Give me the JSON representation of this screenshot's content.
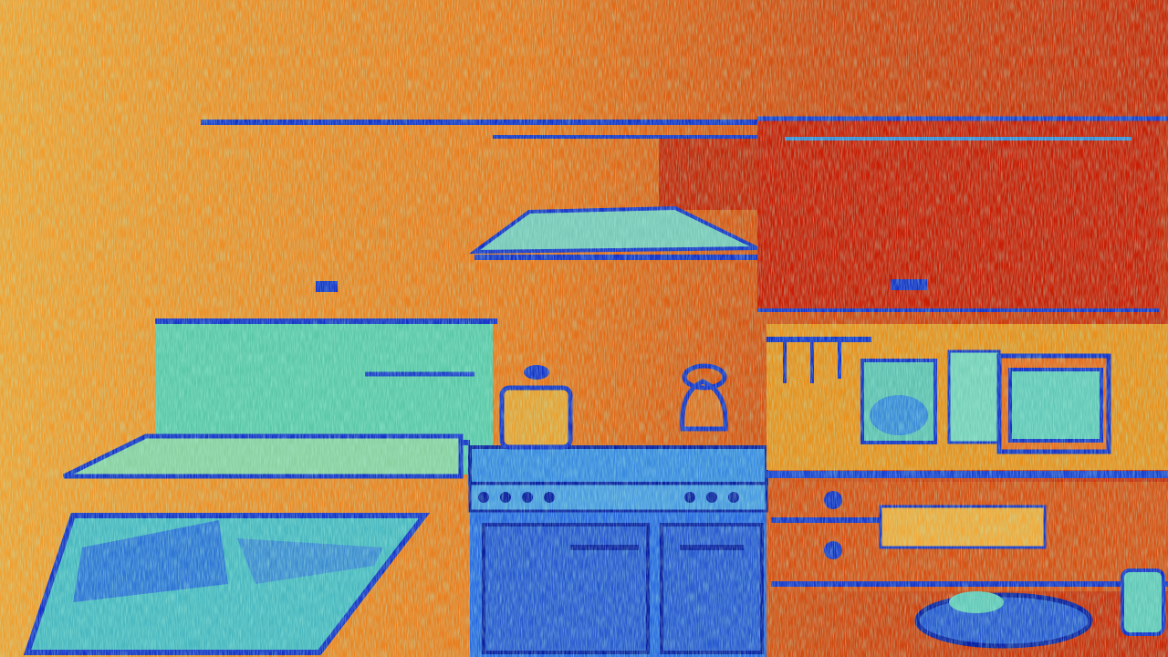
{
  "image": {
    "kind": "false-color thermal-style photograph",
    "subject": "kitchen",
    "palette": {
      "hot": "#c81400",
      "warm": "#e66e16",
      "mid": "#f0be28",
      "cool": "#64dcb4",
      "cold": "#1432c8",
      "coldest": "#0a1ea0"
    }
  }
}
